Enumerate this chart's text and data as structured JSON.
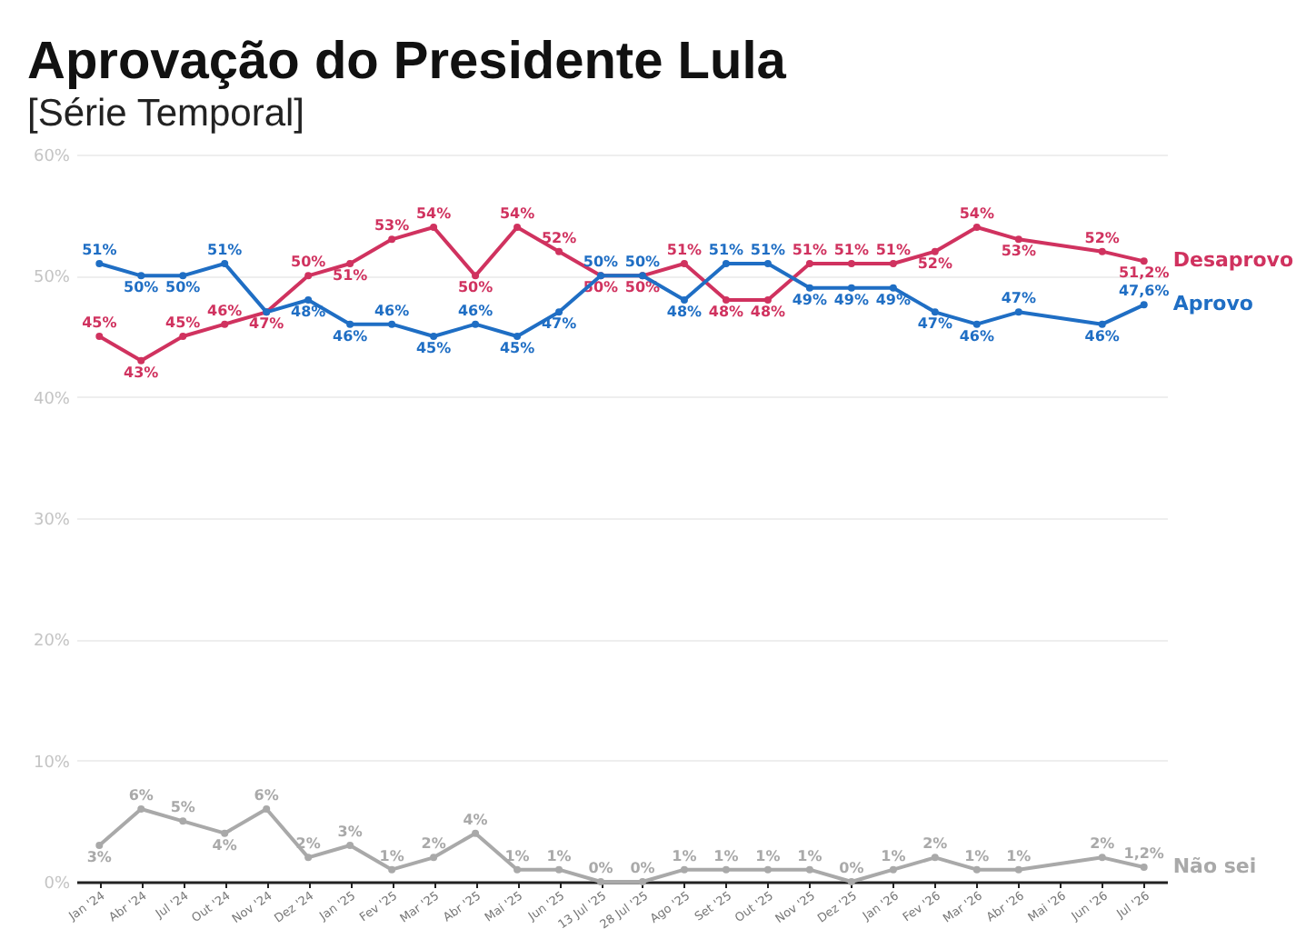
{
  "chart_data": {
    "type": "line",
    "title": "Aprovação do Presidente Lula",
    "subtitle": "[Série Temporal]",
    "categories": [
      "Jan '24",
      "Abr '24",
      "Jul '24",
      "Out '24",
      "Nov '24",
      "Dez '24",
      "Jan '25",
      "Fev '25",
      "Mar '25",
      "Abr '25",
      "Mai '25",
      "Jun '25",
      "13 Jul '25",
      "28 Jul '25",
      "Ago '25",
      "Set '25",
      "Out '25",
      "Nov '25",
      "Dez '25",
      "Jan '26",
      "Fev '26",
      "Mar '26",
      "Abr '26",
      "Mai '26",
      "Jun '26",
      "Jul '26"
    ],
    "series": [
      {
        "name": "Desaprovo",
        "color": "#d0325f",
        "values": [
          45,
          43,
          45,
          46,
          47,
          50,
          51,
          53,
          54,
          50,
          54,
          52,
          50,
          50,
          51,
          48,
          48,
          51,
          51,
          51,
          52,
          54,
          53,
          null,
          52,
          51.2
        ],
        "value_labels": [
          "45%",
          "43%",
          "45%",
          "46%",
          "47%",
          "50%",
          "51%",
          "53%",
          "54%",
          "50%",
          "54%",
          "52%",
          "50%",
          "50%",
          "51%",
          "48%",
          "48%",
          "51%",
          "51%",
          "51%",
          "52%",
          "54%",
          "53%",
          null,
          "52%",
          "51,2%"
        ]
      },
      {
        "name": "Aprovo",
        "color": "#1f6ec4",
        "values": [
          51,
          50,
          50,
          51,
          47,
          48,
          46,
          46,
          45,
          46,
          45,
          47,
          50,
          50,
          48,
          51,
          51,
          49,
          49,
          49,
          47,
          46,
          47,
          null,
          46,
          47.6
        ],
        "value_labels": [
          "51%",
          "50%",
          "50%",
          "51%",
          null,
          "48%",
          "46%",
          "46%",
          "45%",
          "46%",
          "45%",
          "47%",
          "50%",
          "50%",
          "48%",
          "51%",
          "51%",
          "49%",
          "49%",
          "49%",
          "47%",
          "46%",
          "47%",
          null,
          "46%",
          "47,6%"
        ]
      },
      {
        "name": "Não sei",
        "color": "#a9a9a9",
        "values": [
          3,
          6,
          5,
          4,
          6,
          2,
          3,
          1,
          2,
          4,
          1,
          1,
          0,
          0,
          1,
          1,
          1,
          1,
          0,
          1,
          2,
          1,
          1,
          null,
          2,
          1.2
        ],
        "value_labels": [
          "3%",
          "6%",
          "5%",
          "4%",
          "6%",
          "2%",
          "3%",
          "1%",
          "2%",
          "4%",
          "1%",
          "1%",
          "0%",
          "0%",
          "1%",
          "1%",
          "1%",
          "1%",
          "0%",
          "1%",
          "2%",
          "1%",
          "1%",
          null,
          "2%",
          "1,2%"
        ]
      }
    ],
    "ylim": [
      0,
      60
    ],
    "yticks": [
      {
        "value": 0,
        "label": "0%"
      },
      {
        "value": 10,
        "label": "10%"
      },
      {
        "value": 20,
        "label": "20%"
      },
      {
        "value": 30,
        "label": "30%"
      },
      {
        "value": 40,
        "label": "40%"
      },
      {
        "value": 50,
        "label": "50%"
      },
      {
        "value": 60,
        "label": "60%"
      }
    ],
    "grid": "y",
    "marker": "circle"
  }
}
